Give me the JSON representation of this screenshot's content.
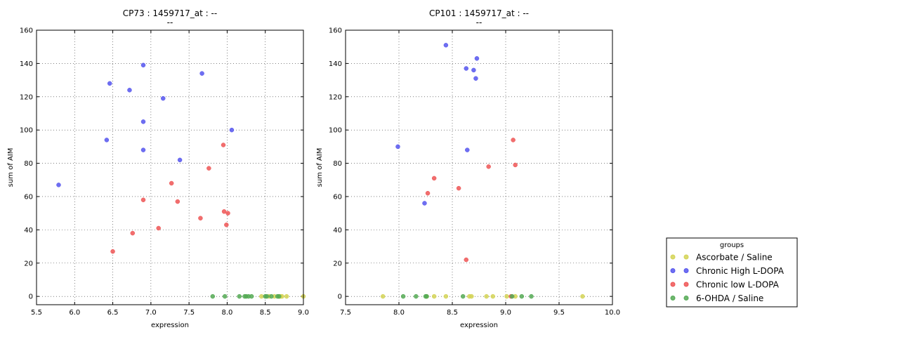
{
  "chart_data": [
    {
      "type": "scatter",
      "title": "CP73 : 1459717_at : --",
      "subtitle": "--",
      "xlabel": "expression",
      "ylabel": "sum of AIM",
      "xlim": [
        5.5,
        9.0
      ],
      "ylim": [
        -5,
        160
      ],
      "xticks": [
        5.5,
        6.0,
        6.5,
        7.0,
        7.5,
        8.0,
        8.5,
        9.0
      ],
      "xtick_labels": [
        "5.5",
        "6.0",
        "6.5",
        "7.0",
        "7.5",
        "8.0",
        "8.5",
        "9.0"
      ],
      "yticks": [
        0,
        20,
        40,
        60,
        80,
        100,
        120,
        140,
        160
      ],
      "ytick_labels": [
        "0",
        "20",
        "40",
        "60",
        "80",
        "100",
        "120",
        "140",
        "160"
      ],
      "grid": true,
      "series": [
        {
          "name": "Ascorbate / Saline",
          "color": "#d4d455",
          "points": [
            [
              8.45,
              0
            ],
            [
              8.55,
              0
            ],
            [
              8.62,
              0
            ],
            [
              8.68,
              0
            ],
            [
              8.72,
              0
            ],
            [
              8.78,
              0
            ],
            [
              9.0,
              0
            ],
            [
              8.7,
              0
            ]
          ]
        },
        {
          "name": "Chronic High L-DOPA",
          "color": "#5555ee",
          "points": [
            [
              5.79,
              67
            ],
            [
              6.42,
              94
            ],
            [
              6.46,
              128
            ],
            [
              6.72,
              124
            ],
            [
              6.9,
              139
            ],
            [
              6.9,
              105
            ],
            [
              6.9,
              88
            ],
            [
              7.16,
              119
            ],
            [
              7.38,
              82
            ],
            [
              7.67,
              134
            ],
            [
              8.06,
              100
            ]
          ]
        },
        {
          "name": "Chronic low L-DOPA",
          "color": "#ee5555",
          "points": [
            [
              6.5,
              27
            ],
            [
              6.76,
              38
            ],
            [
              6.9,
              58
            ],
            [
              7.1,
              41
            ],
            [
              7.27,
              68
            ],
            [
              7.35,
              57
            ],
            [
              7.65,
              47
            ],
            [
              7.76,
              77
            ],
            [
              7.95,
              91
            ],
            [
              7.96,
              51
            ],
            [
              7.99,
              43
            ],
            [
              8.01,
              50
            ]
          ]
        },
        {
          "name": "6-OHDA / Saline",
          "color": "#55aa55",
          "points": [
            [
              7.81,
              0
            ],
            [
              7.97,
              0
            ],
            [
              8.16,
              0
            ],
            [
              8.23,
              0
            ],
            [
              8.25,
              0
            ],
            [
              8.28,
              0
            ],
            [
              8.32,
              0
            ],
            [
              8.5,
              0
            ],
            [
              8.52,
              0
            ],
            [
              8.58,
              0
            ],
            [
              8.66,
              0
            ],
            [
              8.68,
              0
            ]
          ]
        }
      ]
    },
    {
      "type": "scatter",
      "title": "CP101 : 1459717_at : --",
      "subtitle": "--",
      "xlabel": "expression",
      "ylabel": "sum of AIM",
      "xlim": [
        7.5,
        10.0
      ],
      "ylim": [
        -5,
        160
      ],
      "xticks": [
        7.5,
        8.0,
        8.5,
        9.0,
        9.5,
        10.0
      ],
      "xtick_labels": [
        "7.5",
        "8.0",
        "8.5",
        "9.0",
        "9.5",
        "10.0"
      ],
      "yticks": [
        0,
        20,
        40,
        60,
        80,
        100,
        120,
        140,
        160
      ],
      "ytick_labels": [
        "0",
        "20",
        "40",
        "60",
        "80",
        "100",
        "120",
        "140",
        "160"
      ],
      "grid": true,
      "series": [
        {
          "name": "Ascorbate / Saline",
          "color": "#d4d455",
          "points": [
            [
              7.85,
              0
            ],
            [
              8.26,
              0
            ],
            [
              8.33,
              0
            ],
            [
              8.44,
              0
            ],
            [
              8.66,
              0
            ],
            [
              8.68,
              0
            ],
            [
              8.82,
              0
            ],
            [
              8.88,
              0
            ],
            [
              9.01,
              0
            ],
            [
              9.09,
              0
            ],
            [
              9.72,
              0
            ]
          ]
        },
        {
          "name": "Chronic High L-DOPA",
          "color": "#5555ee",
          "points": [
            [
              7.99,
              90
            ],
            [
              8.24,
              56
            ],
            [
              8.44,
              151
            ],
            [
              8.63,
              137
            ],
            [
              8.64,
              88
            ],
            [
              8.7,
              136
            ],
            [
              8.72,
              131
            ],
            [
              8.73,
              143
            ]
          ]
        },
        {
          "name": "Chronic low L-DOPA",
          "color": "#ee5555",
          "points": [
            [
              8.27,
              62
            ],
            [
              8.33,
              71
            ],
            [
              8.56,
              65
            ],
            [
              8.63,
              22
            ],
            [
              8.84,
              78
            ],
            [
              9.05,
              0
            ],
            [
              9.07,
              94
            ],
            [
              9.09,
              79
            ]
          ]
        },
        {
          "name": "6-OHDA / Saline",
          "color": "#55aa55",
          "points": [
            [
              8.04,
              0
            ],
            [
              8.16,
              0
            ],
            [
              8.25,
              0
            ],
            [
              8.26,
              0
            ],
            [
              8.6,
              0
            ],
            [
              9.06,
              0
            ],
            [
              9.15,
              0
            ],
            [
              9.24,
              0
            ]
          ]
        }
      ]
    }
  ],
  "legend": {
    "title": "groups",
    "placement": "bottom-right",
    "items": [
      {
        "label": "Ascorbate / Saline",
        "color": "#d4d455"
      },
      {
        "label": "Chronic High L-DOPA",
        "color": "#5555ee"
      },
      {
        "label": "Chronic low L-DOPA",
        "color": "#ee5555"
      },
      {
        "label": "6-OHDA / Saline",
        "color": "#55aa55"
      }
    ]
  }
}
